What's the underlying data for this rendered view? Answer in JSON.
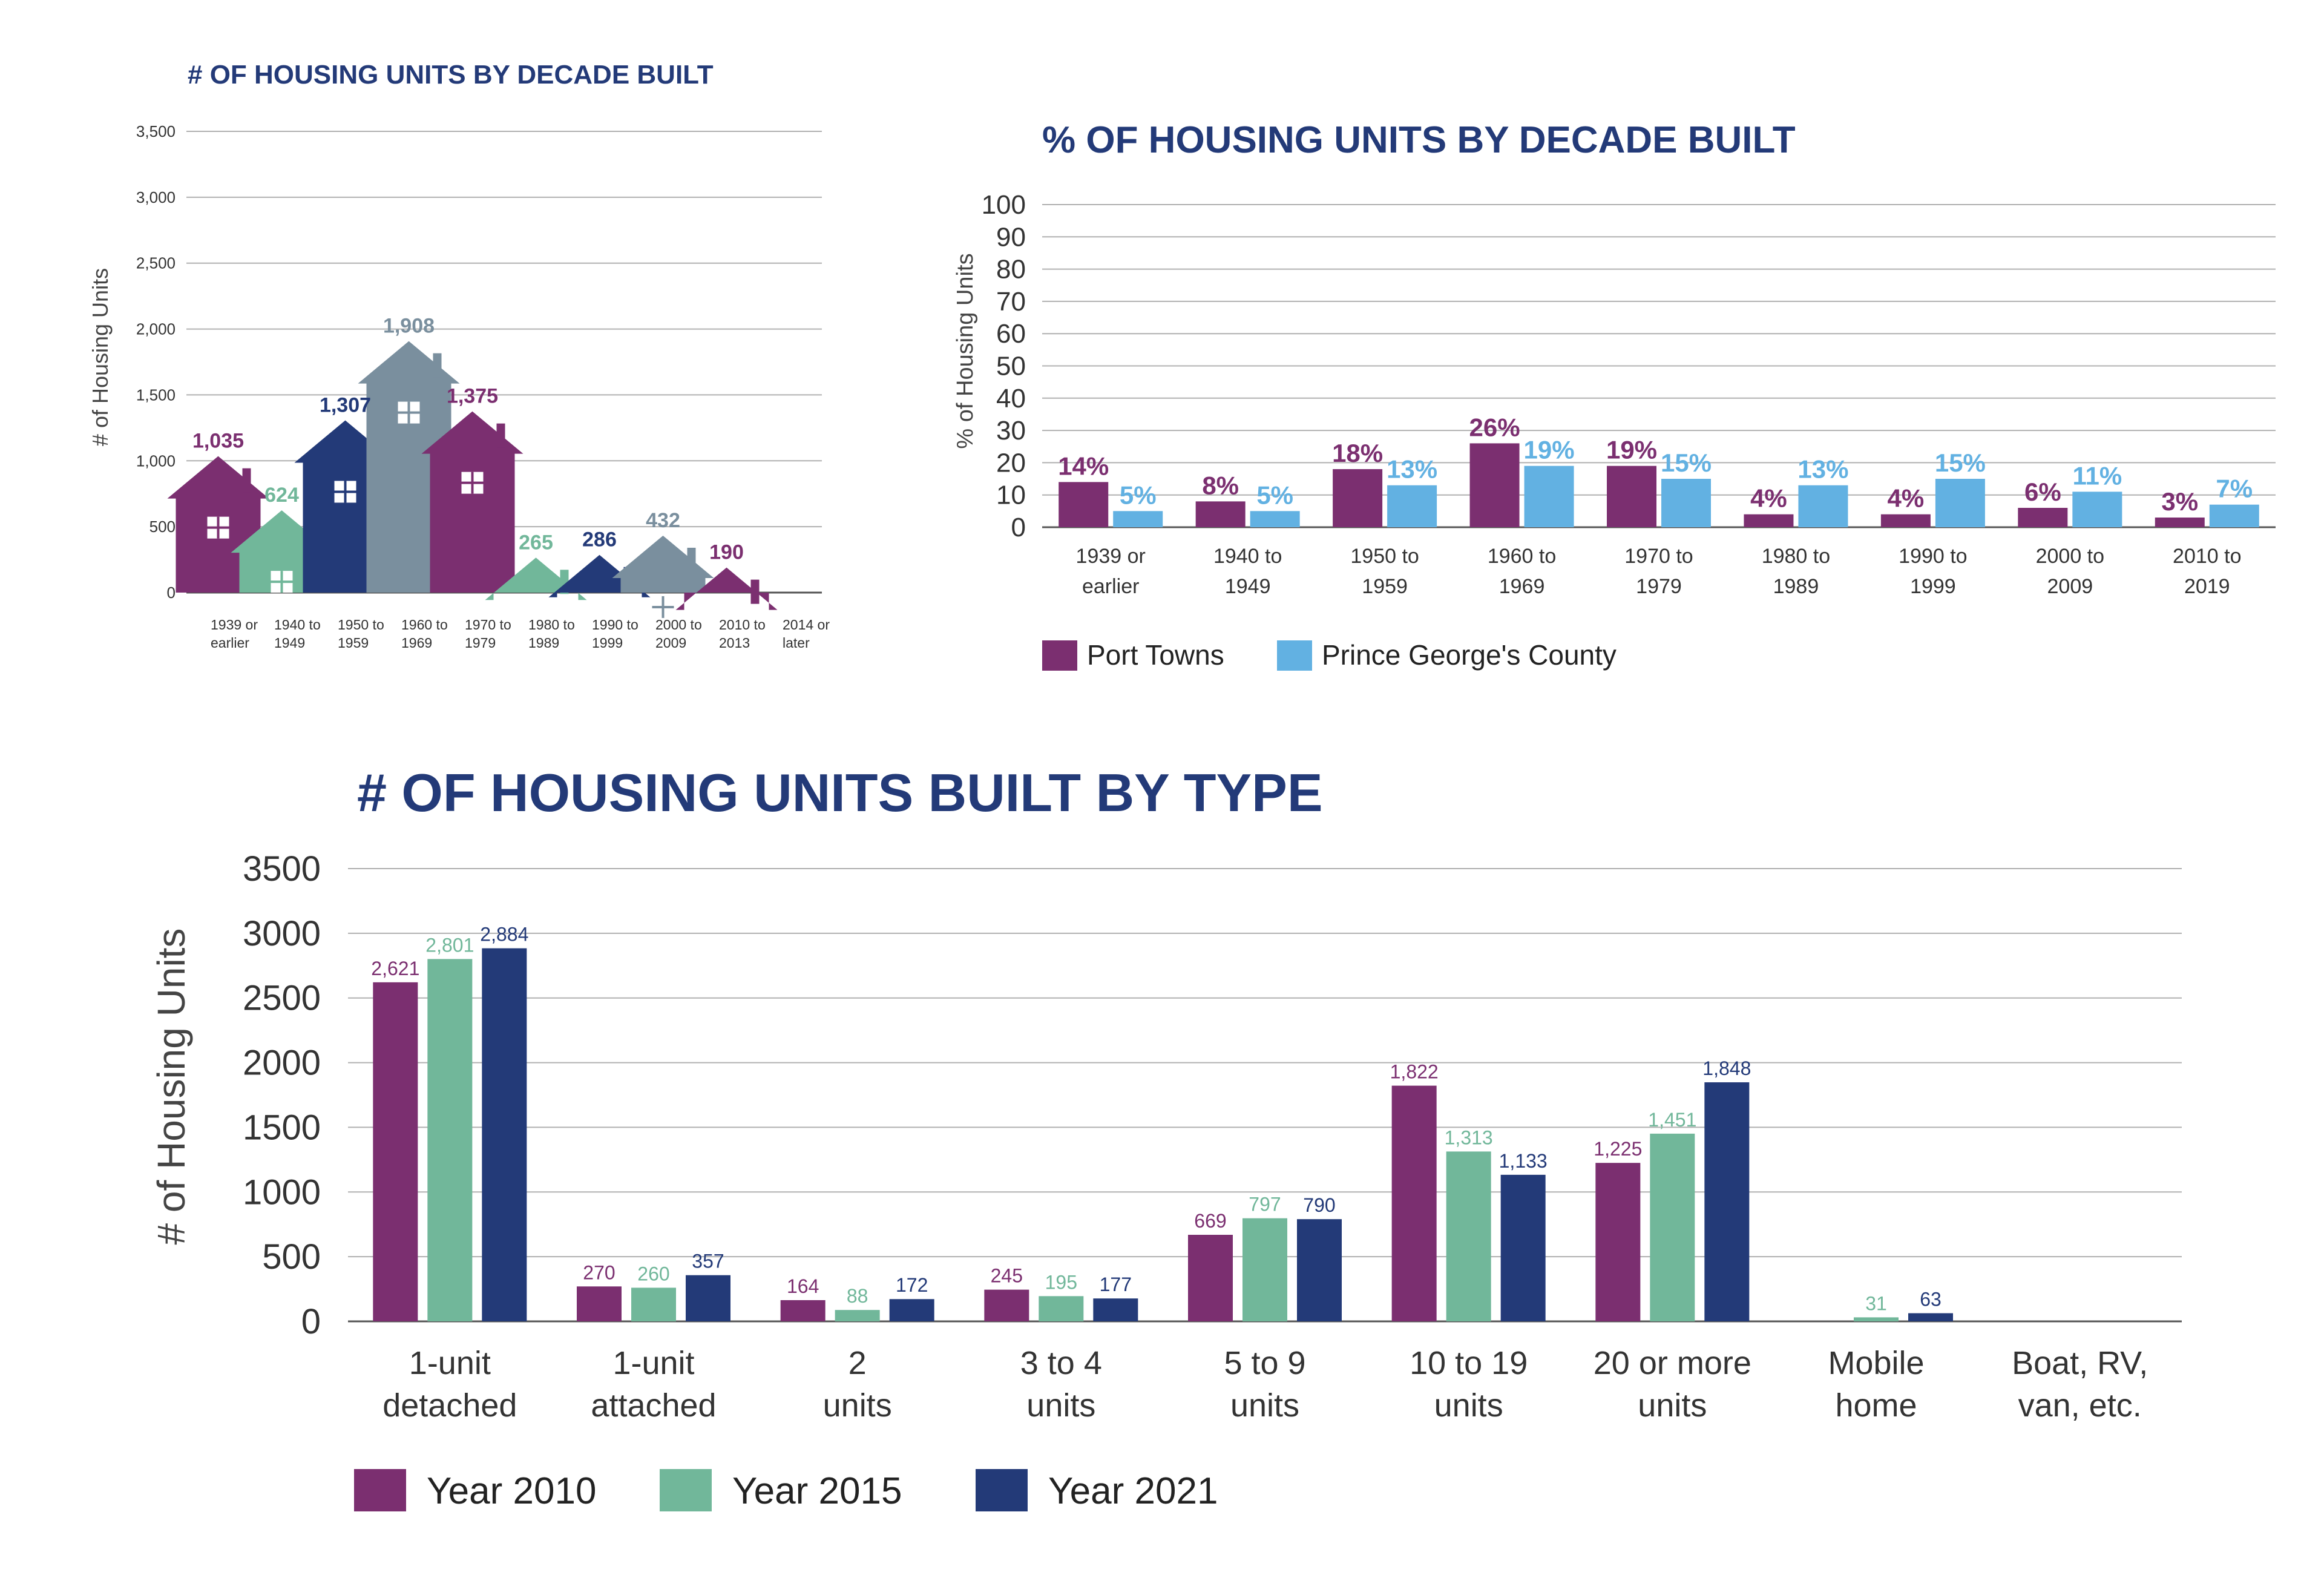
{
  "colors": {
    "purple": "#7b2f70",
    "green": "#71b79a",
    "navy": "#233a78",
    "slate": "#7a8f9e",
    "sky": "#62b1e2",
    "title": "#233a78"
  },
  "chart_data": [
    {
      "type": "bar",
      "title": "# OF HOUSING UNITS BY DECADE BUILT",
      "ylabel": "# of Housing Units",
      "ylim": [
        0,
        3500
      ],
      "yticks": [
        "0",
        "500",
        "1,000",
        "1,500",
        "2,000",
        "2,500",
        "3,000",
        "3,500"
      ],
      "categories": [
        "1939 or earlier",
        "1940 to 1949",
        "1950 to 1959",
        "1960 to 1969",
        "1970 to 1979",
        "1980 to 1989",
        "1990 to 1999",
        "2000 to 2009",
        "2010 to 2013",
        "2014 or later"
      ],
      "values": [
        1035,
        624,
        1307,
        1908,
        1375,
        265,
        286,
        432,
        190,
        null
      ],
      "labels": [
        "1,035",
        "624",
        "1,307",
        "1,908",
        "1,375",
        "265",
        "286",
        "432",
        "190",
        ""
      ],
      "mark_colors": [
        "purple",
        "green",
        "navy",
        "slate",
        "purple",
        "green",
        "navy",
        "slate",
        "purple",
        "purple"
      ]
    },
    {
      "type": "bar",
      "title": "% OF HOUSING UNITS BY DECADE BUILT",
      "ylabel": "% of Housing Units",
      "ylim": [
        0,
        100
      ],
      "yticks": [
        "0",
        "10",
        "20",
        "30",
        "40",
        "50",
        "60",
        "70",
        "80",
        "90",
        "100"
      ],
      "categories": [
        "1939 or earlier",
        "1940 to 1949",
        "1950 to 1959",
        "1960 to 1969",
        "1970 to 1979",
        "1980 to 1989",
        "1990 to 1999",
        "2000 to 2009",
        "2010 to 2019"
      ],
      "series": [
        {
          "name": "Port Towns",
          "color": "purple",
          "values": [
            14,
            8,
            18,
            26,
            19,
            4,
            4,
            6,
            3
          ],
          "labels": [
            "14%",
            "8%",
            "18%",
            "26%",
            "19%",
            "4%",
            "4%",
            "6%",
            "3%"
          ]
        },
        {
          "name": "Prince George's County",
          "color": "sky",
          "values": [
            5,
            5,
            13,
            19,
            15,
            13,
            15,
            11,
            7
          ],
          "labels": [
            "5%",
            "5%",
            "13%",
            "19%",
            "15%",
            "13%",
            "15%",
            "11%",
            "7%"
          ]
        }
      ],
      "legend": "bottom"
    },
    {
      "type": "bar",
      "title": "# OF HOUSING UNITS BUILT BY TYPE",
      "ylabel": "# of Housing Units",
      "ylim": [
        0,
        3500
      ],
      "yticks": [
        "0",
        "500",
        "1000",
        "1500",
        "2000",
        "2500",
        "3000",
        "3500"
      ],
      "categories": [
        "1-unit detached",
        "1-unit attached",
        "2 units",
        "3 to 4 units",
        "5 to 9 units",
        "10 to 19 units",
        "20 or more units",
        "Mobile home",
        "Boat, RV, van, etc."
      ],
      "series": [
        {
          "name": "Year 2010",
          "color": "purple",
          "values": [
            2621,
            270,
            164,
            245,
            669,
            1822,
            1225,
            null,
            null
          ],
          "labels": [
            "2,621",
            "270",
            "164",
            "245",
            "669",
            "1,822",
            "1,225",
            "",
            ""
          ]
        },
        {
          "name": "Year 2015",
          "color": "green",
          "values": [
            2801,
            260,
            88,
            195,
            797,
            1313,
            1451,
            31,
            null
          ],
          "labels": [
            "2,801",
            "260",
            "88",
            "195",
            "797",
            "1,313",
            "1,451",
            "31",
            ""
          ]
        },
        {
          "name": "Year 2021",
          "color": "navy",
          "values": [
            2884,
            357,
            172,
            177,
            790,
            1133,
            1848,
            63,
            null
          ],
          "labels": [
            "2,884",
            "357",
            "172",
            "177",
            "790",
            "1,133",
            "1,848",
            "63",
            ""
          ]
        }
      ],
      "legend": "bottom"
    }
  ]
}
